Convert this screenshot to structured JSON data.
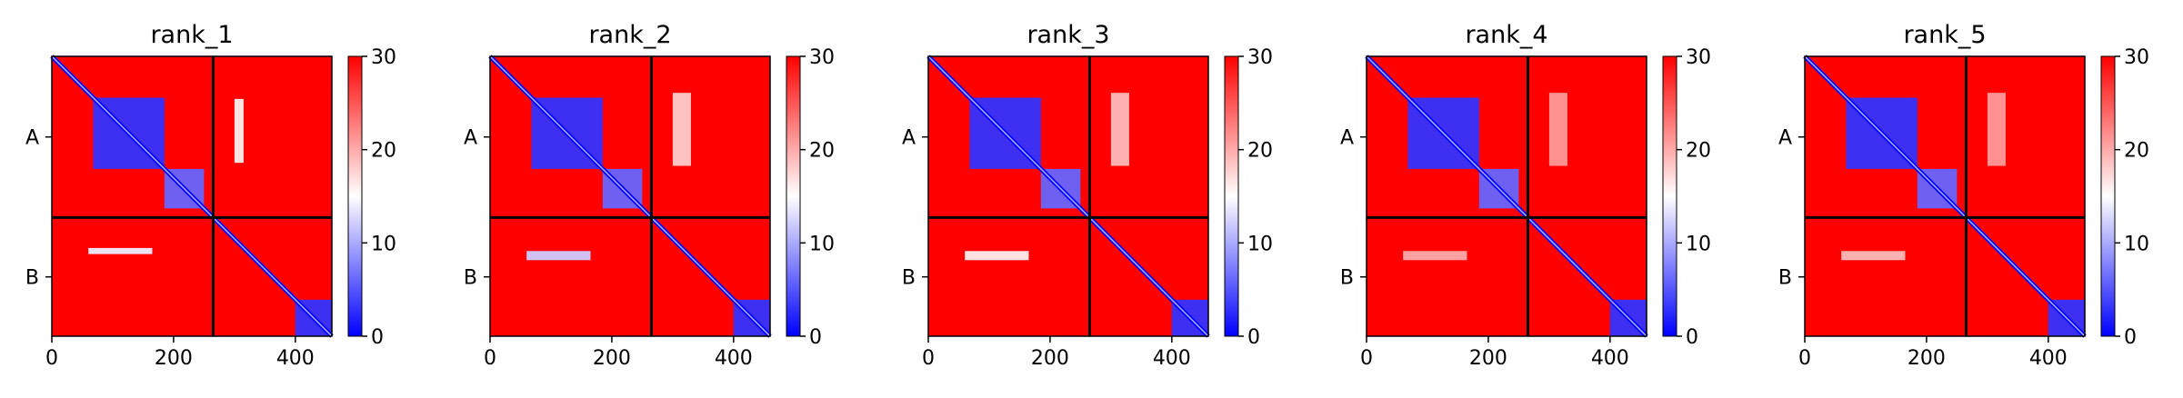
{
  "chart_data": [
    {
      "type": "heatmap",
      "title": "rank_1",
      "xlabel": "",
      "ylabel": "",
      "x_ticks": [
        0,
        200,
        400
      ],
      "xlim": [
        0,
        460
      ],
      "chain_boundary": 265,
      "y_tick_labels": [
        "A",
        "B"
      ],
      "colorbar": {
        "range": [
          0,
          30
        ],
        "ticks": [
          0,
          10,
          20,
          30
        ],
        "colors": [
          "#0000ff",
          "#ffffff",
          "#ff0000"
        ]
      },
      "low_error_blocks": [
        {
          "x": [
            68,
            185
          ],
          "y": [
            68,
            185
          ],
          "value": 3
        },
        {
          "x": [
            185,
            250
          ],
          "y": [
            185,
            250
          ],
          "value": 6
        },
        {
          "x": [
            400,
            460
          ],
          "y": [
            400,
            460
          ],
          "value": 3
        },
        {
          "x": [
            60,
            165
          ],
          "y": [
            315,
            325
          ],
          "value": 14
        },
        {
          "x": [
            300,
            315
          ],
          "y": [
            70,
            175
          ],
          "value": 16
        }
      ]
    },
    {
      "type": "heatmap",
      "title": "rank_2",
      "xlabel": "",
      "ylabel": "",
      "x_ticks": [
        0,
        200,
        400
      ],
      "xlim": [
        0,
        460
      ],
      "chain_boundary": 265,
      "y_tick_labels": [
        "A",
        "B"
      ],
      "colorbar": {
        "range": [
          0,
          30
        ],
        "ticks": [
          0,
          10,
          20,
          30
        ],
        "colors": [
          "#0000ff",
          "#ffffff",
          "#ff0000"
        ]
      },
      "low_error_blocks": [
        {
          "x": [
            68,
            185
          ],
          "y": [
            68,
            185
          ],
          "value": 3
        },
        {
          "x": [
            185,
            250
          ],
          "y": [
            185,
            250
          ],
          "value": 6
        },
        {
          "x": [
            400,
            460
          ],
          "y": [
            400,
            460
          ],
          "value": 3
        },
        {
          "x": [
            60,
            165
          ],
          "y": [
            320,
            335
          ],
          "value": 12
        },
        {
          "x": [
            300,
            330
          ],
          "y": [
            60,
            180
          ],
          "value": 18
        }
      ]
    },
    {
      "type": "heatmap",
      "title": "rank_3",
      "xlabel": "",
      "ylabel": "",
      "x_ticks": [
        0,
        200,
        400
      ],
      "xlim": [
        0,
        460
      ],
      "chain_boundary": 265,
      "y_tick_labels": [
        "A",
        "B"
      ],
      "colorbar": {
        "range": [
          0,
          30
        ],
        "ticks": [
          0,
          10,
          20,
          30
        ],
        "colors": [
          "#0000ff",
          "#ffffff",
          "#ff0000"
        ]
      },
      "low_error_blocks": [
        {
          "x": [
            68,
            185
          ],
          "y": [
            68,
            185
          ],
          "value": 3
        },
        {
          "x": [
            185,
            250
          ],
          "y": [
            185,
            250
          ],
          "value": 6
        },
        {
          "x": [
            400,
            460
          ],
          "y": [
            400,
            460
          ],
          "value": 3
        },
        {
          "x": [
            60,
            165
          ],
          "y": [
            320,
            335
          ],
          "value": 16
        },
        {
          "x": [
            300,
            330
          ],
          "y": [
            60,
            180
          ],
          "value": 19
        }
      ]
    },
    {
      "type": "heatmap",
      "title": "rank_4",
      "xlabel": "",
      "ylabel": "",
      "x_ticks": [
        0,
        200,
        400
      ],
      "xlim": [
        0,
        460
      ],
      "chain_boundary": 265,
      "y_tick_labels": [
        "A",
        "B"
      ],
      "colorbar": {
        "range": [
          0,
          30
        ],
        "ticks": [
          0,
          10,
          20,
          30
        ],
        "colors": [
          "#0000ff",
          "#ffffff",
          "#ff0000"
        ]
      },
      "low_error_blocks": [
        {
          "x": [
            68,
            185
          ],
          "y": [
            68,
            185
          ],
          "value": 3
        },
        {
          "x": [
            185,
            250
          ],
          "y": [
            185,
            250
          ],
          "value": 6
        },
        {
          "x": [
            400,
            460
          ],
          "y": [
            400,
            460
          ],
          "value": 3
        },
        {
          "x": [
            60,
            165
          ],
          "y": [
            320,
            335
          ],
          "value": 20
        },
        {
          "x": [
            300,
            330
          ],
          "y": [
            60,
            180
          ],
          "value": 21
        }
      ]
    },
    {
      "type": "heatmap",
      "title": "rank_5",
      "xlabel": "",
      "ylabel": "",
      "x_ticks": [
        0,
        200,
        400
      ],
      "xlim": [
        0,
        460
      ],
      "chain_boundary": 265,
      "y_tick_labels": [
        "A",
        "B"
      ],
      "colorbar": {
        "range": [
          0,
          30
        ],
        "ticks": [
          0,
          10,
          20,
          30
        ],
        "colors": [
          "#0000ff",
          "#ffffff",
          "#ff0000"
        ]
      },
      "low_error_blocks": [
        {
          "x": [
            68,
            185
          ],
          "y": [
            68,
            185
          ],
          "value": 3
        },
        {
          "x": [
            185,
            250
          ],
          "y": [
            185,
            250
          ],
          "value": 6
        },
        {
          "x": [
            400,
            460
          ],
          "y": [
            400,
            460
          ],
          "value": 3
        },
        {
          "x": [
            60,
            165
          ],
          "y": [
            320,
            335
          ],
          "value": 19
        },
        {
          "x": [
            300,
            330
          ],
          "y": [
            60,
            180
          ],
          "value": 21
        }
      ]
    }
  ]
}
